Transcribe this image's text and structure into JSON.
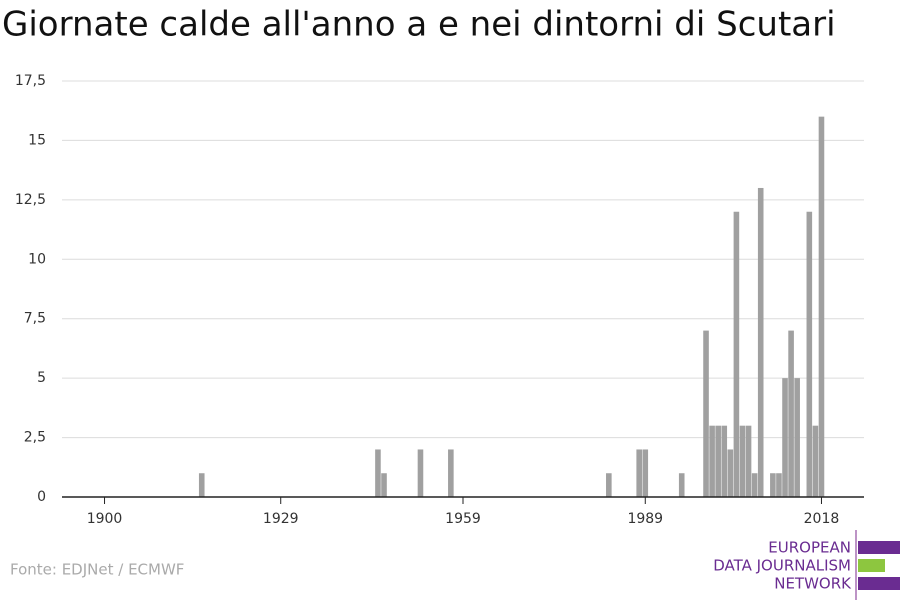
{
  "chart_data": {
    "type": "bar",
    "title": "Giornate calde all'anno a e nei dintorni di Scutari",
    "x": [
      1916,
      1945,
      1946,
      1952,
      1957,
      1983,
      1988,
      1989,
      1995,
      1999,
      2000,
      2001,
      2002,
      2003,
      2004,
      2005,
      2006,
      2007,
      2008,
      2010,
      2011,
      2012,
      2013,
      2014,
      2016,
      2017,
      2018
    ],
    "values": [
      1,
      2,
      1,
      2,
      2,
      1,
      2,
      2,
      1,
      7,
      3,
      3,
      3,
      2,
      12,
      3,
      3,
      1,
      13,
      1,
      1,
      5,
      7,
      5,
      12,
      3,
      16
    ],
    "color": "#a0a0a0",
    "xlim": [
      1893,
      2025
    ],
    "xticks": [
      1900,
      1929,
      1959,
      1989,
      2018
    ],
    "ylim": [
      0,
      17.5
    ],
    "yticks": [
      0,
      {
        "value": 2.5,
        "label": "2,5"
      },
      5,
      {
        "value": 7.5,
        "label": "7,5"
      },
      10,
      {
        "value": 12.5,
        "label": "12,5"
      },
      15,
      {
        "value": 17.5,
        "label": "17,5"
      }
    ],
    "grid": true
  },
  "source": "Fonte: EDJNet / ECMWF",
  "logo": [
    "EUROPEAN",
    "DATA JOURNALISM",
    "NETWORK"
  ]
}
